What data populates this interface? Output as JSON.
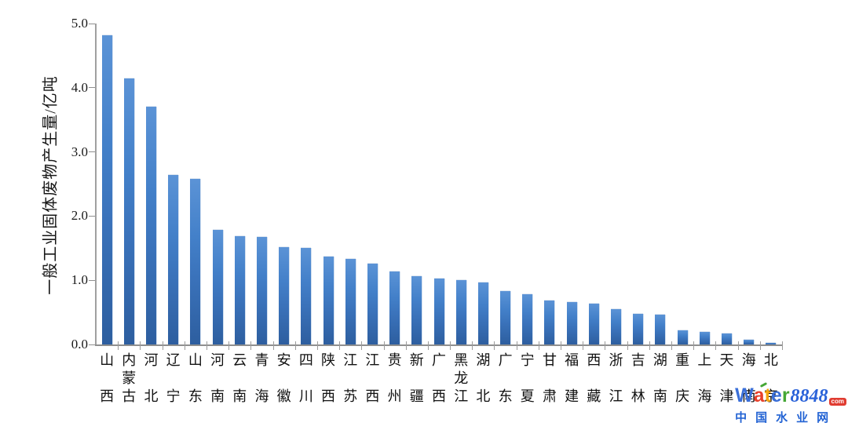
{
  "chart_data": {
    "type": "bar",
    "title": "",
    "xlabel": "",
    "ylabel": "一般工业固体废物产生量/亿吨",
    "ylim": [
      0,
      5
    ],
    "ytick_labels": [
      "5.0",
      "4.0",
      "3.0",
      "2.0",
      "1.0",
      "0.0"
    ],
    "grid": false,
    "legend_position": "none",
    "bar_color": "#3b76c4",
    "categories": [
      "山西",
      "内蒙古",
      "河北",
      "辽宁",
      "山东",
      "河南",
      "云南",
      "青海",
      "安徽",
      "四川",
      "陕西",
      "江苏",
      "江西",
      "贵州",
      "新疆",
      "广西",
      "黑龙江",
      "湖北",
      "广东",
      "宁夏",
      "甘肃",
      "福建",
      "西藏",
      "浙江",
      "吉林",
      "湖南",
      "重庆",
      "上海",
      "天津",
      "海南",
      "北京"
    ],
    "values": [
      4.82,
      4.14,
      3.71,
      2.64,
      2.58,
      1.79,
      1.69,
      1.67,
      1.51,
      1.5,
      1.37,
      1.33,
      1.26,
      1.14,
      1.06,
      1.03,
      1.0,
      0.97,
      0.83,
      0.78,
      0.69,
      0.66,
      0.64,
      0.55,
      0.48,
      0.47,
      0.22,
      0.19,
      0.17,
      0.07,
      0.02
    ]
  },
  "watermark": {
    "brand_letters": [
      {
        "ch": "W",
        "color": "#3a6fd8"
      },
      {
        "ch": "a",
        "color": "#e8402a",
        "accent": true
      },
      {
        "ch": "t",
        "color": "#f6a50e"
      },
      {
        "ch": "e",
        "color": "#3a6fd8"
      },
      {
        "ch": "r",
        "color": "#45a735"
      }
    ],
    "number": "8848",
    "number_color": "#2b63d9",
    "suffix": "com",
    "suffix_bg": "#e03c31",
    "accent_color": "#45a735",
    "tagline": "中国水业网",
    "tagline_color": "#2464d4"
  }
}
